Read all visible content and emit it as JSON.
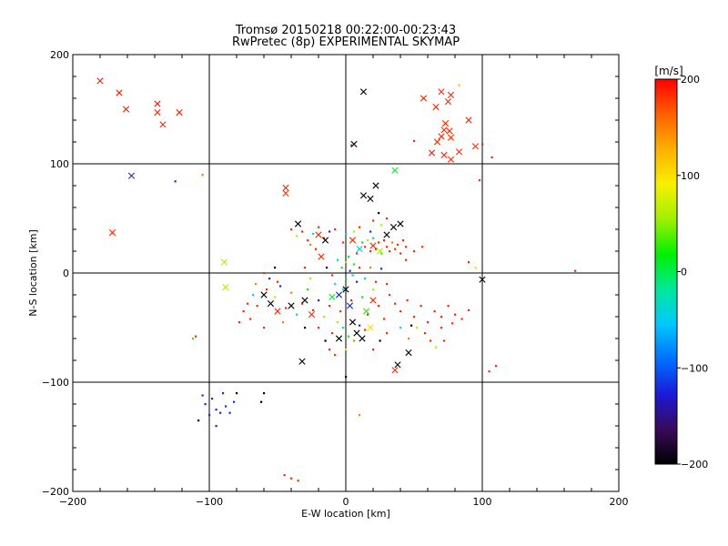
{
  "chart_data": {
    "type": "scatter",
    "title": "Tromsø 20150218 00:22:00-00:23:43",
    "subtitle": "RwPretec (8p) EXPERIMENTAL SKYMAP",
    "xlabel": "E-W location [km]",
    "ylabel": "N-S location [km]",
    "xlim": [
      -200,
      200
    ],
    "ylim": [
      -200,
      200
    ],
    "x_ticks": [
      -200,
      -100,
      0,
      100,
      200
    ],
    "y_ticks": [
      -200,
      -100,
      0,
      100,
      200
    ],
    "x_tick_labels": [
      "−200",
      "−100",
      "0",
      "100",
      "200"
    ],
    "y_tick_labels": [
      "−200",
      "−100",
      "0",
      "100",
      "200"
    ],
    "grid": true,
    "colorbar": {
      "label": "[m/s]",
      "range": [
        -200,
        200
      ],
      "ticks": [
        200,
        100,
        0,
        -100,
        -200
      ],
      "tick_labels": [
        "200",
        "100",
        "0",
        "−100",
        "−200"
      ],
      "colors": [
        "#000000",
        "#3a0a5a",
        "#1a1ad8",
        "#0070ff",
        "#00c8ff",
        "#00e89a",
        "#00f000",
        "#a0f000",
        "#f8f000",
        "#ffb000",
        "#ff6000",
        "#ff0000"
      ]
    },
    "markers": {
      "large": "x",
      "small": "dot"
    },
    "points_large": [
      {
        "x": -180,
        "y": 176,
        "v": 190
      },
      {
        "x": -166,
        "y": 165,
        "v": 190
      },
      {
        "x": -161,
        "y": 150,
        "v": 185
      },
      {
        "x": -138,
        "y": 155,
        "v": 190
      },
      {
        "x": -138,
        "y": 147,
        "v": 185
      },
      {
        "x": -134,
        "y": 136,
        "v": 185
      },
      {
        "x": -122,
        "y": 147,
        "v": 190
      },
      {
        "x": -157,
        "y": 89,
        "v": -120
      },
      {
        "x": -171,
        "y": 37,
        "v": 185
      },
      {
        "x": -44,
        "y": 78,
        "v": 185
      },
      {
        "x": -44,
        "y": 73,
        "v": 180
      },
      {
        "x": -89,
        "y": 10,
        "v": 60
      },
      {
        "x": -88,
        "y": -13,
        "v": 60
      },
      {
        "x": 13,
        "y": 166,
        "v": -200
      },
      {
        "x": 6,
        "y": 118,
        "v": -200
      },
      {
        "x": 13,
        "y": 71,
        "v": -200
      },
      {
        "x": 22,
        "y": 80,
        "v": -200
      },
      {
        "x": 18,
        "y": 68,
        "v": -200
      },
      {
        "x": 36,
        "y": 94,
        "v": 10
      },
      {
        "x": 57,
        "y": 160,
        "v": 185
      },
      {
        "x": 66,
        "y": 152,
        "v": 185
      },
      {
        "x": 70,
        "y": 166,
        "v": 185
      },
      {
        "x": 77,
        "y": 163,
        "v": 185
      },
      {
        "x": 75,
        "y": 157,
        "v": 185
      },
      {
        "x": 73,
        "y": 137,
        "v": 185
      },
      {
        "x": 72,
        "y": 131,
        "v": 185
      },
      {
        "x": 76,
        "y": 130,
        "v": 185
      },
      {
        "x": 70,
        "y": 125,
        "v": 185
      },
      {
        "x": 67,
        "y": 120,
        "v": 185
      },
      {
        "x": 77,
        "y": 124,
        "v": 185
      },
      {
        "x": 90,
        "y": 140,
        "v": 185
      },
      {
        "x": 63,
        "y": 110,
        "v": 185
      },
      {
        "x": 72,
        "y": 108,
        "v": 185
      },
      {
        "x": 83,
        "y": 111,
        "v": 185
      },
      {
        "x": 77,
        "y": 104,
        "v": 185
      },
      {
        "x": 95,
        "y": 116,
        "v": 185
      },
      {
        "x": 100,
        "y": -6,
        "v": -200
      },
      {
        "x": -32,
        "y": -81,
        "v": -200
      },
      {
        "x": 38,
        "y": -84,
        "v": -200
      },
      {
        "x": 36,
        "y": -89,
        "v": 185
      },
      {
        "x": 46,
        "y": -73,
        "v": -200
      },
      {
        "x": -55,
        "y": -28,
        "v": -200
      },
      {
        "x": -40,
        "y": -30,
        "v": -200
      },
      {
        "x": -30,
        "y": -25,
        "v": -200
      },
      {
        "x": -25,
        "y": -38,
        "v": 185
      },
      {
        "x": -10,
        "y": -22,
        "v": 10
      },
      {
        "x": -5,
        "y": -20,
        "v": -120
      },
      {
        "x": 0,
        "y": -15,
        "v": -200
      },
      {
        "x": 3,
        "y": -30,
        "v": -120
      },
      {
        "x": 5,
        "y": -45,
        "v": -200
      },
      {
        "x": 8,
        "y": -55,
        "v": -200
      },
      {
        "x": 12,
        "y": -60,
        "v": -200
      },
      {
        "x": -5,
        "y": -60,
        "v": -200
      },
      {
        "x": 15,
        "y": -35,
        "v": 30
      },
      {
        "x": 20,
        "y": -25,
        "v": 185
      },
      {
        "x": 25,
        "y": 20,
        "v": 60
      },
      {
        "x": 20,
        "y": 25,
        "v": 185
      },
      {
        "x": 10,
        "y": 22,
        "v": -40
      },
      {
        "x": 5,
        "y": 30,
        "v": 185
      },
      {
        "x": -20,
        "y": 35,
        "v": 185
      },
      {
        "x": -15,
        "y": 30,
        "v": -200
      },
      {
        "x": -35,
        "y": 45,
        "v": -200
      },
      {
        "x": -18,
        "y": 15,
        "v": 185
      },
      {
        "x": 30,
        "y": 35,
        "v": -200
      },
      {
        "x": 35,
        "y": 42,
        "v": -200
      },
      {
        "x": 40,
        "y": 45,
        "v": -200
      },
      {
        "x": -60,
        "y": -20,
        "v": -200
      },
      {
        "x": -50,
        "y": -35,
        "v": 185
      },
      {
        "x": 18,
        "y": -50,
        "v": 100
      }
    ],
    "points_small": [
      {
        "x": -125,
        "y": 84,
        "v": -120
      },
      {
        "x": -105,
        "y": 90,
        "v": 150
      },
      {
        "x": -110,
        "y": -58,
        "v": 185
      },
      {
        "x": -112,
        "y": -60,
        "v": 30
      },
      {
        "x": -105,
        "y": -112,
        "v": -120
      },
      {
        "x": -103,
        "y": -120,
        "v": -120
      },
      {
        "x": -100,
        "y": -130,
        "v": -120
      },
      {
        "x": -98,
        "y": -115,
        "v": -120
      },
      {
        "x": -95,
        "y": -125,
        "v": -120
      },
      {
        "x": -92,
        "y": -128,
        "v": -120
      },
      {
        "x": -90,
        "y": -110,
        "v": -120
      },
      {
        "x": -88,
        "y": -122,
        "v": -120
      },
      {
        "x": -85,
        "y": -128,
        "v": -120
      },
      {
        "x": -82,
        "y": -118,
        "v": -120
      },
      {
        "x": -80,
        "y": -110,
        "v": -200
      },
      {
        "x": -108,
        "y": -135,
        "v": -200
      },
      {
        "x": -95,
        "y": -140,
        "v": -120
      },
      {
        "x": -60,
        "y": -110,
        "v": -200
      },
      {
        "x": -62,
        "y": -118,
        "v": -200
      },
      {
        "x": -45,
        "y": -185,
        "v": 185
      },
      {
        "x": -40,
        "y": -188,
        "v": 185
      },
      {
        "x": -35,
        "y": -190,
        "v": 185
      },
      {
        "x": 10,
        "y": -130,
        "v": 150
      },
      {
        "x": 0,
        "y": -95,
        "v": -200
      },
      {
        "x": 105,
        "y": -90,
        "v": 185
      },
      {
        "x": 110,
        "y": -85,
        "v": 185
      },
      {
        "x": 168,
        "y": 2,
        "v": 185
      },
      {
        "x": 98,
        "y": 85,
        "v": 185
      },
      {
        "x": 107,
        "y": 106,
        "v": 185
      },
      {
        "x": 100,
        "y": 118,
        "v": 185
      },
      {
        "x": 83,
        "y": 172,
        "v": 120
      },
      {
        "x": 50,
        "y": 121,
        "v": 185
      },
      {
        "x": 4,
        "y": 117,
        "v": 185
      },
      {
        "x": 90,
        "y": 10,
        "v": 185
      },
      {
        "x": 95,
        "y": 5,
        "v": 100
      },
      {
        "x": -75,
        "y": -35,
        "v": 185
      },
      {
        "x": -70,
        "y": -42,
        "v": 185
      },
      {
        "x": -65,
        "y": -30,
        "v": 185
      },
      {
        "x": -58,
        "y": -15,
        "v": 185
      },
      {
        "x": -52,
        "y": -22,
        "v": 60
      },
      {
        "x": -48,
        "y": -12,
        "v": -120
      },
      {
        "x": -44,
        "y": -32,
        "v": 185
      },
      {
        "x": -40,
        "y": -18,
        "v": 150
      },
      {
        "x": -36,
        "y": -38,
        "v": -40
      },
      {
        "x": -32,
        "y": -28,
        "v": 185
      },
      {
        "x": -28,
        "y": -15,
        "v": 10
      },
      {
        "x": -24,
        "y": -34,
        "v": 185
      },
      {
        "x": -20,
        "y": -25,
        "v": -120
      },
      {
        "x": -16,
        "y": -40,
        "v": 60
      },
      {
        "x": -12,
        "y": -30,
        "v": 185
      },
      {
        "x": -8,
        "y": -10,
        "v": -40
      },
      {
        "x": -4,
        "y": -35,
        "v": 185
      },
      {
        "x": 0,
        "y": -5,
        "v": 10
      },
      {
        "x": 4,
        "y": -25,
        "v": 185
      },
      {
        "x": 8,
        "y": -8,
        "v": -120
      },
      {
        "x": 12,
        "y": -22,
        "v": 10
      },
      {
        "x": 16,
        "y": -38,
        "v": 185
      },
      {
        "x": 20,
        "y": -15,
        "v": 60
      },
      {
        "x": 24,
        "y": -30,
        "v": 185
      },
      {
        "x": 28,
        "y": -42,
        "v": 185
      },
      {
        "x": 32,
        "y": -20,
        "v": 185
      },
      {
        "x": 36,
        "y": -28,
        "v": 185
      },
      {
        "x": 40,
        "y": -35,
        "v": 185
      },
      {
        "x": 45,
        "y": -25,
        "v": 185
      },
      {
        "x": 50,
        "y": -40,
        "v": 185
      },
      {
        "x": 55,
        "y": -30,
        "v": 185
      },
      {
        "x": 60,
        "y": -45,
        "v": 185
      },
      {
        "x": 65,
        "y": -35,
        "v": 185
      },
      {
        "x": 70,
        "y": -40,
        "v": 185
      },
      {
        "x": 75,
        "y": -30,
        "v": 185
      },
      {
        "x": 80,
        "y": -38,
        "v": 185
      },
      {
        "x": 85,
        "y": -42,
        "v": 185
      },
      {
        "x": 90,
        "y": -34,
        "v": 185
      },
      {
        "x": 58,
        "y": -55,
        "v": 185
      },
      {
        "x": 52,
        "y": -50,
        "v": 60
      },
      {
        "x": 46,
        "y": -60,
        "v": 150
      },
      {
        "x": 70,
        "y": -50,
        "v": 185
      },
      {
        "x": 78,
        "y": -46,
        "v": 185
      },
      {
        "x": -2,
        "y": -50,
        "v": -40
      },
      {
        "x": -6,
        "y": -45,
        "v": 60
      },
      {
        "x": -10,
        "y": -55,
        "v": 185
      },
      {
        "x": -15,
        "y": -62,
        "v": -200
      },
      {
        "x": 2,
        "y": -58,
        "v": 10
      },
      {
        "x": 6,
        "y": -62,
        "v": 150
      },
      {
        "x": 10,
        "y": -48,
        "v": -120
      },
      {
        "x": 14,
        "y": -52,
        "v": 185
      },
      {
        "x": -3,
        "y": 5,
        "v": 10
      },
      {
        "x": 0,
        "y": 10,
        "v": 60
      },
      {
        "x": 3,
        "y": 2,
        "v": -120
      },
      {
        "x": 6,
        "y": 8,
        "v": 10
      },
      {
        "x": -6,
        "y": 12,
        "v": -40
      },
      {
        "x": 2,
        "y": 15,
        "v": 10
      },
      {
        "x": 5,
        "y": -2,
        "v": -40
      },
      {
        "x": -2,
        "y": -15,
        "v": -40
      },
      {
        "x": 8,
        "y": 18,
        "v": 185
      },
      {
        "x": 12,
        "y": 28,
        "v": 10
      },
      {
        "x": 14,
        "y": 24,
        "v": 185
      },
      {
        "x": 16,
        "y": 30,
        "v": 60
      },
      {
        "x": 18,
        "y": 20,
        "v": 185
      },
      {
        "x": 20,
        "y": 32,
        "v": -40
      },
      {
        "x": 22,
        "y": 22,
        "v": 185
      },
      {
        "x": 24,
        "y": 28,
        "v": 185
      },
      {
        "x": 26,
        "y": 18,
        "v": 10
      },
      {
        "x": 28,
        "y": 30,
        "v": 185
      },
      {
        "x": 30,
        "y": 24,
        "v": 185
      },
      {
        "x": 32,
        "y": 20,
        "v": 185
      },
      {
        "x": 34,
        "y": 28,
        "v": 150
      },
      {
        "x": 36,
        "y": 22,
        "v": 185
      },
      {
        "x": 38,
        "y": 26,
        "v": 185
      },
      {
        "x": 40,
        "y": 18,
        "v": 185
      },
      {
        "x": 42,
        "y": 30,
        "v": 185
      },
      {
        "x": 44,
        "y": 24,
        "v": 185
      },
      {
        "x": -40,
        "y": 40,
        "v": 185
      },
      {
        "x": -36,
        "y": 34,
        "v": 60
      },
      {
        "x": -32,
        "y": 38,
        "v": 185
      },
      {
        "x": -28,
        "y": 30,
        "v": 185
      },
      {
        "x": -24,
        "y": 36,
        "v": -40
      },
      {
        "x": -20,
        "y": 42,
        "v": 185
      },
      {
        "x": -16,
        "y": 32,
        "v": 185
      },
      {
        "x": -12,
        "y": 38,
        "v": -120
      },
      {
        "x": -8,
        "y": 40,
        "v": 185
      },
      {
        "x": -26,
        "y": 26,
        "v": 150
      },
      {
        "x": -22,
        "y": 22,
        "v": 185
      },
      {
        "x": -52,
        "y": 5,
        "v": -200
      },
      {
        "x": -56,
        "y": -5,
        "v": -120
      },
      {
        "x": -50,
        "y": -8,
        "v": 185
      },
      {
        "x": -60,
        "y": 0,
        "v": 185
      },
      {
        "x": -66,
        "y": -10,
        "v": 150
      },
      {
        "x": -68,
        "y": -20,
        "v": -40
      },
      {
        "x": -72,
        "y": -28,
        "v": 185
      },
      {
        "x": -78,
        "y": -45,
        "v": 185
      },
      {
        "x": -60,
        "y": -50,
        "v": 185
      },
      {
        "x": -46,
        "y": -45,
        "v": 150
      },
      {
        "x": -30,
        "y": -50,
        "v": -200
      },
      {
        "x": -20,
        "y": -50,
        "v": 185
      },
      {
        "x": -12,
        "y": -70,
        "v": 185
      },
      {
        "x": -8,
        "y": -75,
        "v": 185
      },
      {
        "x": 0,
        "y": -70,
        "v": 100
      },
      {
        "x": 20,
        "y": -70,
        "v": 185
      },
      {
        "x": 25,
        "y": -62,
        "v": -200
      },
      {
        "x": 30,
        "y": -55,
        "v": 185
      },
      {
        "x": 40,
        "y": -50,
        "v": -40
      },
      {
        "x": 48,
        "y": -48,
        "v": -200
      },
      {
        "x": 62,
        "y": -62,
        "v": 185
      },
      {
        "x": 66,
        "y": -68,
        "v": 60
      },
      {
        "x": 72,
        "y": -62,
        "v": 185
      },
      {
        "x": 30,
        "y": 50,
        "v": 185
      },
      {
        "x": 26,
        "y": 44,
        "v": 60
      },
      {
        "x": 24,
        "y": 55,
        "v": -200
      },
      {
        "x": 20,
        "y": 48,
        "v": 185
      },
      {
        "x": 18,
        "y": 38,
        "v": -120
      },
      {
        "x": 10,
        "y": 42,
        "v": 185
      },
      {
        "x": 6,
        "y": 38,
        "v": 60
      },
      {
        "x": -2,
        "y": 28,
        "v": 185
      },
      {
        "x": 0,
        "y": 36,
        "v": -40
      },
      {
        "x": 44,
        "y": 12,
        "v": 185
      },
      {
        "x": 50,
        "y": 20,
        "v": 185
      },
      {
        "x": 56,
        "y": 24,
        "v": 185
      },
      {
        "x": -30,
        "y": 5,
        "v": 185
      },
      {
        "x": -26,
        "y": -5,
        "v": 60
      },
      {
        "x": -14,
        "y": 5,
        "v": -200
      },
      {
        "x": -10,
        "y": -2,
        "v": 185
      },
      {
        "x": 10,
        "y": 5,
        "v": 185
      },
      {
        "x": 14,
        "y": -5,
        "v": -40
      },
      {
        "x": 18,
        "y": 5,
        "v": 150
      },
      {
        "x": 22,
        "y": -8,
        "v": 185
      },
      {
        "x": 26,
        "y": 4,
        "v": -120
      },
      {
        "x": 30,
        "y": -10,
        "v": 185
      }
    ]
  }
}
